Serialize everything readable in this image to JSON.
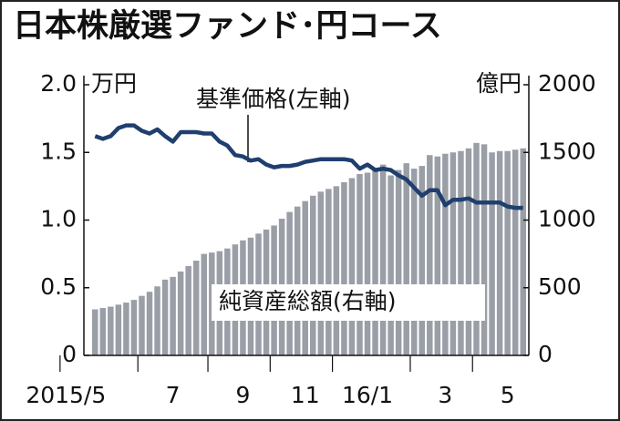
{
  "chart_data": {
    "type": "bar-line",
    "title": "日本株厳選ファンド･円コース",
    "y_unit": "万円",
    "y2_unit": "億円",
    "annotations": [
      "基準価格(左軸)",
      "純資産総額(右軸)"
    ],
    "categories": [
      "2015/5",
      null,
      null,
      null,
      null,
      null,
      null,
      null,
      null,
      null,
      "7",
      null,
      null,
      null,
      null,
      null,
      null,
      null,
      null,
      "9",
      null,
      null,
      null,
      null,
      null,
      null,
      null,
      "11",
      null,
      null,
      null,
      null,
      null,
      null,
      null,
      "16/1",
      null,
      null,
      null,
      null,
      null,
      null,
      null,
      null,
      null,
      "3",
      null,
      null,
      null,
      null,
      null,
      null,
      null,
      "5",
      null,
      null
    ],
    "series": [
      {
        "name": "純資産総額",
        "type": "bar",
        "axis": "y2",
        "color": "#9a9ea6",
        "values": [
          340,
          350,
          360,
          375,
          390,
          410,
          440,
          470,
          510,
          560,
          580,
          620,
          660,
          700,
          750,
          760,
          770,
          790,
          820,
          850,
          870,
          900,
          930,
          960,
          1010,
          1060,
          1100,
          1140,
          1180,
          1210,
          1230,
          1250,
          1280,
          1310,
          1340,
          1350,
          1380,
          1410,
          1330,
          1370,
          1420,
          1380,
          1400,
          1480,
          1470,
          1490,
          1500,
          1510,
          1530,
          1570,
          1560,
          1500,
          1510,
          1510,
          1520,
          1530
        ]
      },
      {
        "name": "基準価格",
        "type": "line",
        "axis": "y",
        "color": "#1f3f6e",
        "values": [
          1.62,
          1.6,
          1.62,
          1.68,
          1.7,
          1.7,
          1.66,
          1.64,
          1.67,
          1.62,
          1.58,
          1.65,
          1.65,
          1.65,
          1.64,
          1.64,
          1.58,
          1.55,
          1.48,
          1.47,
          1.44,
          1.45,
          1.41,
          1.39,
          1.4,
          1.4,
          1.41,
          1.43,
          1.44,
          1.45,
          1.45,
          1.45,
          1.45,
          1.44,
          1.38,
          1.41,
          1.37,
          1.38,
          1.37,
          1.33,
          1.3,
          1.24,
          1.18,
          1.22,
          1.22,
          1.11,
          1.15,
          1.15,
          1.16,
          1.13,
          1.13,
          1.13,
          1.13,
          1.1,
          1.09,
          1.09
        ]
      }
    ],
    "ylim": [
      0,
      2
    ],
    "yticks": [
      0,
      0.5,
      {
        "value": 1,
        "label": "1.0"
      },
      1.5,
      {
        "value": 2,
        "label": "2.0"
      }
    ],
    "y2lim": [
      0,
      2000
    ],
    "y2ticks": [
      0,
      500,
      1000,
      1500,
      2000
    ]
  }
}
